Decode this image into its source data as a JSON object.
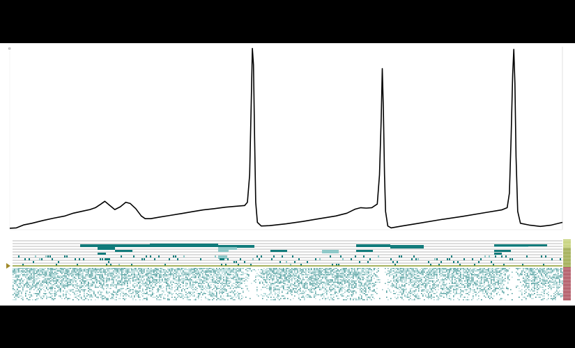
{
  "colors": {
    "background": "#000000",
    "panel": "#ffffff",
    "trace": "#000000",
    "teal": "#117b7b",
    "teal_light": "#8ec8c8",
    "marker": "#a08a2a",
    "olive": "#8a9a2a",
    "olive_light": "#b7c75a",
    "red": "#a03040"
  },
  "icons": {
    "row_marker": "triangle-right-icon"
  },
  "chart_data": {
    "type": "line",
    "title": "",
    "xlabel": "",
    "ylabel": "",
    "xlim": [
      0,
      1
    ],
    "ylim": [
      0,
      1
    ],
    "series": [
      {
        "points": [
          [
            0.0,
            0.008
          ],
          [
            0.012,
            0.01
          ],
          [
            0.025,
            0.026
          ],
          [
            0.04,
            0.035
          ],
          [
            0.06,
            0.05
          ],
          [
            0.08,
            0.063
          ],
          [
            0.1,
            0.075
          ],
          [
            0.115,
            0.09
          ],
          [
            0.13,
            0.1
          ],
          [
            0.145,
            0.11
          ],
          [
            0.155,
            0.12
          ],
          [
            0.165,
            0.14
          ],
          [
            0.172,
            0.155
          ],
          [
            0.18,
            0.135
          ],
          [
            0.19,
            0.11
          ],
          [
            0.2,
            0.125
          ],
          [
            0.21,
            0.15
          ],
          [
            0.218,
            0.143
          ],
          [
            0.228,
            0.115
          ],
          [
            0.238,
            0.075
          ],
          [
            0.245,
            0.06
          ],
          [
            0.255,
            0.06
          ],
          [
            0.27,
            0.068
          ],
          [
            0.29,
            0.078
          ],
          [
            0.31,
            0.088
          ],
          [
            0.33,
            0.098
          ],
          [
            0.35,
            0.108
          ],
          [
            0.37,
            0.115
          ],
          [
            0.39,
            0.123
          ],
          [
            0.41,
            0.128
          ],
          [
            0.425,
            0.132
          ],
          [
            0.43,
            0.15
          ],
          [
            0.434,
            0.3
          ],
          [
            0.437,
            0.7
          ],
          [
            0.439,
            0.99
          ],
          [
            0.441,
            0.9
          ],
          [
            0.443,
            0.5
          ],
          [
            0.445,
            0.15
          ],
          [
            0.448,
            0.04
          ],
          [
            0.455,
            0.02
          ],
          [
            0.47,
            0.022
          ],
          [
            0.5,
            0.032
          ],
          [
            0.53,
            0.045
          ],
          [
            0.56,
            0.06
          ],
          [
            0.59,
            0.075
          ],
          [
            0.61,
            0.09
          ],
          [
            0.625,
            0.112
          ],
          [
            0.635,
            0.12
          ],
          [
            0.645,
            0.118
          ],
          [
            0.655,
            0.12
          ],
          [
            0.665,
            0.14
          ],
          [
            0.669,
            0.3
          ],
          [
            0.672,
            0.6
          ],
          [
            0.674,
            0.88
          ],
          [
            0.676,
            0.65
          ],
          [
            0.678,
            0.3
          ],
          [
            0.68,
            0.1
          ],
          [
            0.684,
            0.02
          ],
          [
            0.69,
            0.01
          ],
          [
            0.71,
            0.02
          ],
          [
            0.74,
            0.035
          ],
          [
            0.78,
            0.055
          ],
          [
            0.82,
            0.073
          ],
          [
            0.86,
            0.093
          ],
          [
            0.89,
            0.108
          ],
          [
            0.9,
            0.12
          ],
          [
            0.904,
            0.2
          ],
          [
            0.907,
            0.5
          ],
          [
            0.91,
            0.85
          ],
          [
            0.912,
            0.985
          ],
          [
            0.914,
            0.8
          ],
          [
            0.916,
            0.4
          ],
          [
            0.919,
            0.1
          ],
          [
            0.924,
            0.035
          ],
          [
            0.94,
            0.025
          ],
          [
            0.96,
            0.018
          ],
          [
            0.98,
            0.025
          ],
          [
            1.0,
            0.04
          ]
        ]
      }
    ]
  }
}
